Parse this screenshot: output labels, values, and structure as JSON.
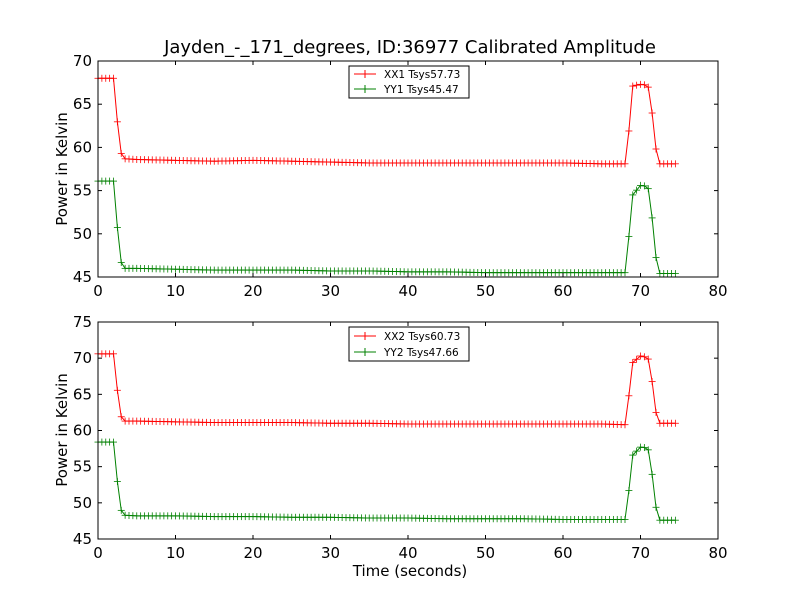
{
  "colors": {
    "xx": "#ff0000",
    "yy": "#008000"
  },
  "chart_data": [
    {
      "type": "line",
      "title": "Jayden_-_171_degrees, ID:36977 Calibrated Amplitude",
      "xlabel": "",
      "ylabel": "Power in Kelvin",
      "xlim": [
        0,
        80
      ],
      "ylim": [
        45,
        70
      ],
      "xticks": [
        0,
        10,
        20,
        30,
        40,
        50,
        60,
        70,
        80
      ],
      "yticks": [
        45,
        50,
        55,
        60,
        65,
        70
      ],
      "grid": false,
      "legend_position": "top-center",
      "series": [
        {
          "name": "XX1 Tsys57.73",
          "color": "#ff0000",
          "x": [
            0,
            2.1,
            2.6,
            3.1,
            5,
            10,
            15,
            20,
            25,
            30,
            35,
            40,
            45,
            50,
            55,
            60,
            65,
            68.1,
            68.5,
            69.0,
            70,
            70.9,
            71.3,
            71.8,
            72.5,
            74.5
          ],
          "y": [
            68.0,
            68.0,
            61.7,
            58.7,
            58.6,
            58.5,
            58.4,
            58.5,
            58.4,
            58.3,
            58.2,
            58.2,
            58.2,
            58.2,
            58.2,
            58.2,
            58.1,
            58.1,
            61.9,
            67.1,
            67.3,
            67.2,
            66.3,
            60.5,
            58.1,
            58.1
          ]
        },
        {
          "name": "YY1 Tsys45.47",
          "color": "#008000",
          "x": [
            0,
            2.1,
            2.6,
            3.1,
            5,
            10,
            15,
            20,
            25,
            30,
            35,
            40,
            45,
            50,
            55,
            60,
            65,
            68.1,
            68.5,
            69.0,
            70,
            70.9,
            71.3,
            71.8,
            72.5,
            74.5
          ],
          "y": [
            56.1,
            56.1,
            49.4,
            46.0,
            46.0,
            45.9,
            45.8,
            45.8,
            45.8,
            45.7,
            45.7,
            45.6,
            45.6,
            45.5,
            45.5,
            45.5,
            45.5,
            45.5,
            49.7,
            54.5,
            55.6,
            55.5,
            54.4,
            48.0,
            45.4,
            45.4
          ]
        }
      ]
    },
    {
      "type": "line",
      "title": "",
      "xlabel": "Time (seconds)",
      "ylabel": "Power in Kelvin",
      "xlim": [
        0,
        80
      ],
      "ylim": [
        45,
        75
      ],
      "xticks": [
        0,
        10,
        20,
        30,
        40,
        50,
        60,
        70,
        80
      ],
      "yticks": [
        45,
        50,
        55,
        60,
        65,
        70,
        75
      ],
      "grid": false,
      "legend_position": "top-center",
      "series": [
        {
          "name": "XX2 Tsys60.73",
          "color": "#ff0000",
          "x": [
            0,
            2.1,
            2.6,
            3.1,
            5,
            10,
            15,
            20,
            25,
            30,
            35,
            40,
            45,
            50,
            55,
            60,
            65,
            68.1,
            68.5,
            69.0,
            70,
            70.9,
            71.3,
            71.8,
            72.5,
            74.5
          ],
          "y": [
            70.6,
            70.6,
            64.3,
            61.3,
            61.3,
            61.2,
            61.1,
            61.1,
            61.1,
            61.0,
            61.0,
            60.9,
            60.9,
            60.9,
            60.9,
            60.9,
            60.9,
            60.8,
            64.8,
            69.4,
            70.3,
            70.1,
            69.2,
            63.1,
            61.0,
            61.0
          ]
        },
        {
          "name": "YY2 Tsys47.66",
          "color": "#008000",
          "x": [
            0,
            2.1,
            2.6,
            3.1,
            5,
            10,
            15,
            20,
            25,
            30,
            35,
            40,
            45,
            50,
            55,
            60,
            65,
            68.1,
            68.5,
            69.0,
            70,
            70.9,
            71.3,
            71.8,
            72.5,
            74.5
          ],
          "y": [
            58.4,
            58.4,
            51.6,
            48.3,
            48.2,
            48.2,
            48.1,
            48.1,
            48.0,
            48.0,
            47.9,
            47.9,
            47.8,
            47.8,
            47.8,
            47.7,
            47.7,
            47.7,
            51.7,
            56.6,
            57.7,
            57.6,
            56.5,
            50.1,
            47.6,
            47.6
          ]
        }
      ]
    }
  ]
}
